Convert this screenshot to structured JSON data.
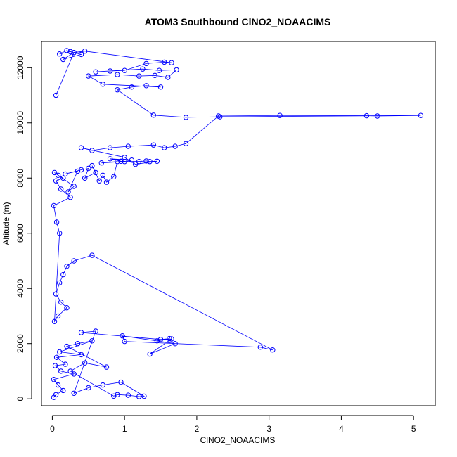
{
  "chart_data": {
    "type": "scatter",
    "title": "ATOM3 Southbound ClNO2_NOAACIMS",
    "xlabel": "ClNO2_NOAACIMS",
    "ylabel": "Altitude (m)",
    "xlim": [
      -0.15,
      5.3
    ],
    "ylim": [
      -250,
      12950
    ],
    "xticks": [
      0,
      1,
      2,
      3,
      4,
      5
    ],
    "yticks": [
      0,
      2000,
      4000,
      6000,
      8000,
      10000,
      12000
    ],
    "grid": false,
    "marker": "open-circle",
    "connected": true,
    "color": "#0000ff",
    "series": [
      {
        "x": [
          0.02,
          0.05,
          0.15,
          0.08,
          0.02,
          0.3,
          0.12,
          0.04,
          0.18,
          0.06,
          0.4,
          0.1,
          0.55,
          0.35,
          0.2,
          0.75,
          0.45,
          0.25,
          0.85,
          0.9,
          1.05,
          1.2,
          1.27,
          0.95,
          0.7,
          0.5,
          0.3,
          0.6,
          0.4,
          1.5,
          1.62,
          1.45,
          1.65,
          1.35,
          1.7,
          0.97,
          1.0,
          2.88,
          3.05,
          0.55,
          0.3,
          0.2,
          0.15,
          0.1,
          0.05,
          0.12,
          0.2,
          0.08,
          0.03,
          0.1,
          0.06,
          0.02,
          0.25,
          0.12,
          0.05,
          0.15,
          0.08,
          0.03,
          0.3,
          0.22,
          0.35,
          0.18,
          0.4,
          0.5,
          0.45,
          0.6,
          0.55,
          0.65,
          0.7,
          0.75,
          0.85,
          0.9,
          0.68,
          1.0,
          1.1,
          0.8,
          0.95,
          1.2,
          1.3,
          1.35,
          1.45,
          1.15,
          1.0,
          0.4,
          0.55,
          0.8,
          1.05,
          1.4,
          1.55,
          1.7,
          1.85,
          2.3,
          3.15,
          4.35,
          4.5,
          5.1,
          2.32,
          1.85,
          1.4,
          0.9,
          1.1,
          1.3,
          1.5,
          0.7,
          0.5,
          0.9,
          1.2,
          1.42,
          1.6,
          1.72,
          1.48,
          1.25,
          0.6,
          0.8,
          1.0,
          1.3,
          1.55,
          1.65,
          0.45,
          0.3,
          0.2,
          0.1,
          0.25,
          0.4,
          0.15,
          0.3,
          0.05
        ],
        "y": [
          50,
          150,
          300,
          500,
          700,
          900,
          1000,
          1200,
          1250,
          1500,
          1600,
          1700,
          2100,
          2000,
          1900,
          1150,
          1300,
          1000,
          100,
          150,
          130,
          80,
          95,
          600,
          500,
          400,
          200,
          2450,
          2400,
          2150,
          2180,
          2100,
          2170,
          1620,
          2000,
          2280,
          2080,
          1870,
          1770,
          5200,
          5000,
          4800,
          4500,
          4200,
          3800,
          3500,
          3300,
          3000,
          2800,
          6000,
          6400,
          7000,
          7300,
          7600,
          7900,
          8000,
          8100,
          8200,
          7700,
          7500,
          8250,
          8150,
          8300,
          8350,
          8000,
          8200,
          8450,
          7900,
          8100,
          7850,
          8050,
          8600,
          8550,
          8600,
          8650,
          8700,
          8610,
          8600,
          8620,
          8600,
          8610,
          8500,
          8750,
          9100,
          9000,
          9100,
          9150,
          9200,
          9100,
          9150,
          9250,
          10250,
          10270,
          10260,
          10250,
          10270,
          10220,
          10200,
          10280,
          11200,
          11300,
          11350,
          11300,
          11400,
          11700,
          11750,
          11700,
          11720,
          11650,
          11920,
          11900,
          11950,
          11850,
          11880,
          11900,
          12150,
          12200,
          12180,
          12600,
          12550,
          12620,
          12500,
          12580,
          12480,
          12300,
          12550,
          11000
        ]
      }
    ]
  }
}
